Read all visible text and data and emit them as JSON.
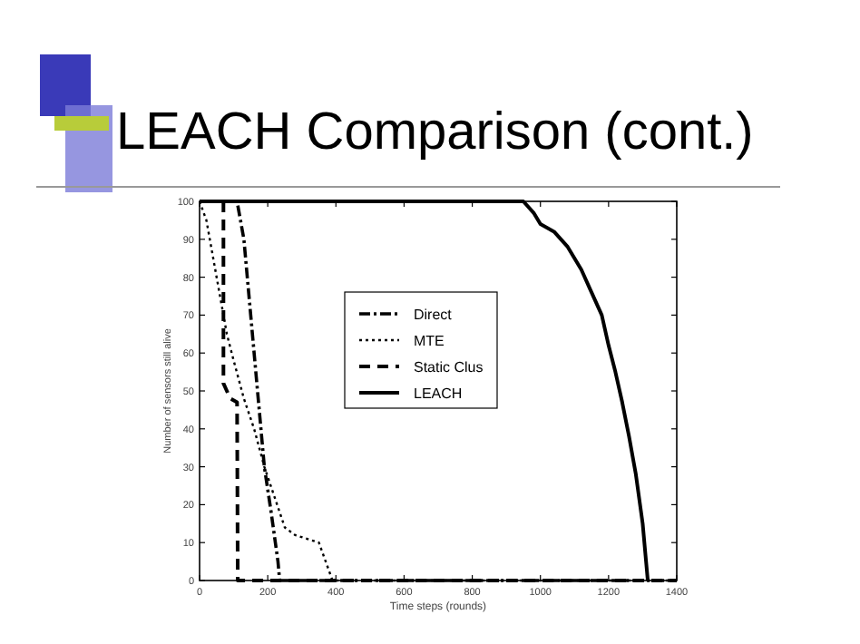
{
  "chart_data": {
    "type": "line",
    "title": "LEACH Comparison (cont.)",
    "xlabel": "Time steps (rounds)",
    "ylabel": "Number of sensors still alive",
    "xlim": [
      0,
      1400
    ],
    "xticks": [
      0,
      200,
      400,
      600,
      800,
      1000,
      1200,
      1400
    ],
    "ylim": [
      0,
      100
    ],
    "yticks": [
      0,
      10,
      20,
      30,
      40,
      50,
      60,
      70,
      80,
      90,
      100
    ],
    "legend": "right",
    "marker": "none",
    "series": [
      {
        "name": "Direct",
        "color": "#000000",
        "line_style": "dashdot",
        "x": [
          0,
          110,
          130,
          150,
          170,
          190,
          210,
          230,
          235,
          1400
        ],
        "values": [
          100,
          100,
          90,
          70,
          50,
          30,
          18,
          5,
          0,
          0
        ]
      },
      {
        "name": "MTE",
        "color": "#000000",
        "line_style": "dotted",
        "x": [
          0,
          20,
          40,
          60,
          80,
          100,
          130,
          160,
          190,
          220,
          250,
          280,
          350,
          370,
          390,
          1400
        ],
        "values": [
          100,
          95,
          85,
          75,
          65,
          58,
          48,
          40,
          30,
          22,
          14,
          12,
          10,
          5,
          0,
          0
        ]
      },
      {
        "name": "Static Clus",
        "color": "#000000",
        "line_style": "dashed",
        "x": [
          70,
          70,
          90,
          110,
          112,
          1400
        ],
        "values": [
          100,
          52,
          48,
          47,
          0,
          0
        ]
      },
      {
        "name": "LEACH",
        "color": "#000000",
        "line_style": "solid",
        "x": [
          0,
          950,
          980,
          1000,
          1040,
          1080,
          1120,
          1150,
          1180,
          1200,
          1220,
          1240,
          1260,
          1280,
          1300,
          1310,
          1315
        ],
        "values": [
          100,
          100,
          97,
          94,
          92,
          88,
          82,
          76,
          70,
          62,
          55,
          47,
          38,
          28,
          15,
          5,
          0
        ]
      }
    ]
  }
}
